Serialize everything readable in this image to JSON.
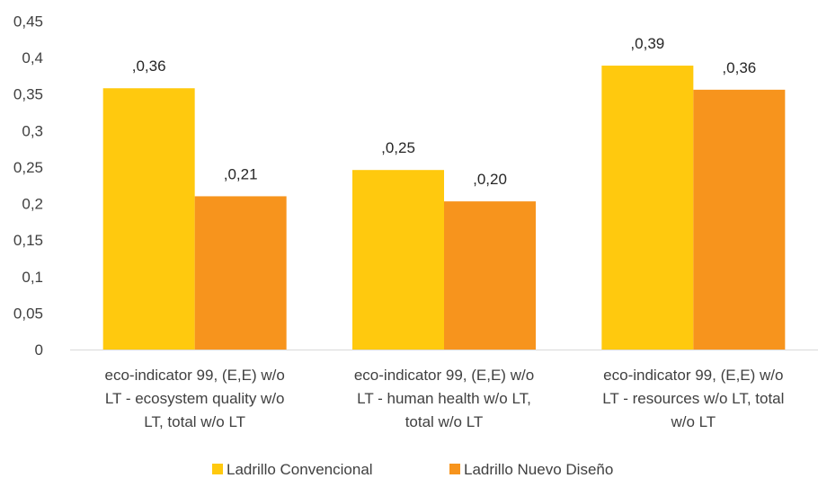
{
  "chart_data": {
    "type": "bar",
    "categories": [
      [
        "eco-indicator 99, (E,E) w/o",
        "LT - ecosystem quality w/o",
        "LT, total w/o LT"
      ],
      [
        "eco-indicator 99, (E,E) w/o",
        "LT - human health w/o LT,",
        "total w/o LT"
      ],
      [
        "eco-indicator 99, (E,E) w/o",
        "LT - resources w/o LT, total",
        "w/o LT"
      ]
    ],
    "series": [
      {
        "name": "Ladrillo Convencional",
        "color": "#FFC90E",
        "values": [
          0.358,
          0.246,
          0.389
        ],
        "labels": [
          ",0,36",
          ",0,25",
          ",0,39"
        ]
      },
      {
        "name": "Ladrillo Nuevo Diseño",
        "color": "#F7941D",
        "values": [
          0.21,
          0.203,
          0.356
        ],
        "labels": [
          ",0,21",
          ",0,20",
          ",0,36"
        ]
      }
    ],
    "yticks": [
      0,
      0.05,
      0.1,
      0.15,
      0.2,
      0.25,
      0.3,
      0.35,
      0.4,
      0.45
    ],
    "ytick_labels": [
      "0",
      "0,05",
      "0,1",
      "0,15",
      "0,2",
      "0,25",
      "0,3",
      "0,35",
      "0,4",
      "0,45"
    ],
    "ylim": [
      0,
      0.45
    ],
    "grid": false,
    "legend_position": "bottom",
    "axis_color": "#D9D9D9"
  }
}
